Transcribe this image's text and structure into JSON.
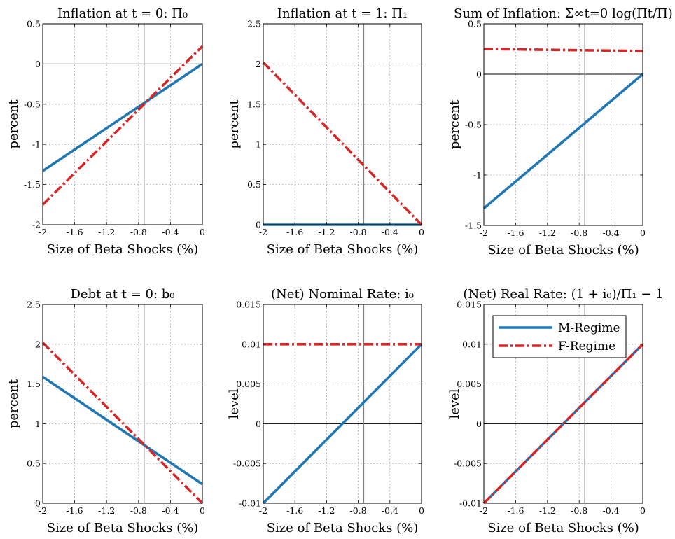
{
  "colors": {
    "m_regime": "#1f77b4",
    "f_regime": "#d62728",
    "zero_line": "#000000",
    "vline": "#808080",
    "grid": "#9a9a9a"
  },
  "legend": {
    "entries": [
      "M-Regime",
      "F-Regime"
    ],
    "placement": "top-right of panel 6"
  },
  "chart_data": [
    {
      "type": "line",
      "title": "Inflation at t = 0: Π₀",
      "xlabel": "Size of Beta Shocks (%)",
      "ylabel": "percent",
      "xlim": [
        -2,
        0
      ],
      "ylim": [
        -2,
        0.5
      ],
      "xticks": [
        "-2",
        "-1.6",
        "-1.2",
        "-0.8",
        "-0.4",
        "0"
      ],
      "yticks": [
        "-2",
        "-1.5",
        "-1",
        "-0.5",
        "0",
        "0.5"
      ],
      "vline_x": -0.73,
      "grid": true,
      "series": [
        {
          "name": "M-Regime",
          "style": "solid",
          "x": [
            -2,
            0
          ],
          "y": [
            -1.33,
            0
          ]
        },
        {
          "name": "F-Regime",
          "style": "dashdot",
          "x": [
            -2,
            0
          ],
          "y": [
            -1.75,
            0.22
          ]
        }
      ]
    },
    {
      "type": "line",
      "title": "Inflation at t = 1: Π₁",
      "xlabel": "Size of Beta Shocks (%)",
      "ylabel": "percent",
      "xlim": [
        -2,
        0
      ],
      "ylim": [
        0,
        2.5
      ],
      "xticks": [
        "-2",
        "-1.6",
        "-1.2",
        "-0.8",
        "-0.4",
        "0"
      ],
      "yticks": [
        "0",
        "0.5",
        "1",
        "1.5",
        "2",
        "2.5"
      ],
      "vline_x": -0.73,
      "grid": true,
      "series": [
        {
          "name": "M-Regime",
          "style": "solid",
          "x": [
            -2,
            0
          ],
          "y": [
            0,
            0
          ]
        },
        {
          "name": "F-Regime",
          "style": "dashdot",
          "x": [
            -2,
            0
          ],
          "y": [
            2.02,
            0
          ]
        }
      ]
    },
    {
      "type": "line",
      "title": "Sum of Inflation: Σ∞t=0 log(Πt/Π̄)",
      "xlabel": "Size of Beta Shocks (%)",
      "ylabel": "percent",
      "xlim": [
        -2,
        0
      ],
      "ylim": [
        -1.5,
        0.5
      ],
      "xticks": [
        "-2",
        "-1.6",
        "-1.2",
        "-0.8",
        "-0.4",
        "0"
      ],
      "yticks": [
        "-1.5",
        "-1",
        "-0.5",
        "0",
        "0.5"
      ],
      "vline_x": -0.73,
      "grid": true,
      "series": [
        {
          "name": "M-Regime",
          "style": "solid",
          "x": [
            -2,
            0
          ],
          "y": [
            -1.33,
            0
          ]
        },
        {
          "name": "F-Regime",
          "style": "dashdot",
          "x": [
            -2,
            0
          ],
          "y": [
            0.25,
            0.23
          ]
        }
      ]
    },
    {
      "type": "line",
      "title": "Debt at t = 0: b₀",
      "xlabel": "Size of Beta Shocks (%)",
      "ylabel": "percent",
      "xlim": [
        -2,
        0
      ],
      "ylim": [
        0,
        2.5
      ],
      "xticks": [
        "-2",
        "-1.6",
        "-1.2",
        "-0.8",
        "-0.4",
        "0"
      ],
      "yticks": [
        "0",
        "0.5",
        "1",
        "1.5",
        "2",
        "2.5"
      ],
      "vline_x": -0.73,
      "grid": true,
      "series": [
        {
          "name": "M-Regime",
          "style": "solid",
          "x": [
            -2,
            0
          ],
          "y": [
            1.59,
            0.24
          ]
        },
        {
          "name": "F-Regime",
          "style": "dashdot",
          "x": [
            -2,
            0
          ],
          "y": [
            2.02,
            0
          ]
        }
      ]
    },
    {
      "type": "line",
      "title": "(Net) Nominal Rate: i₀",
      "xlabel": "Size of Beta Shocks (%)",
      "ylabel": "level",
      "xlim": [
        -2,
        0
      ],
      "ylim": [
        -0.01,
        0.015
      ],
      "xticks": [
        "-2",
        "-1.6",
        "-1.2",
        "-0.8",
        "-0.4",
        "0"
      ],
      "yticks": [
        "-0.01",
        "-0.005",
        "0",
        "0.005",
        "0.01",
        "0.015"
      ],
      "vline_x": -0.73,
      "grid": true,
      "series": [
        {
          "name": "M-Regime",
          "style": "solid",
          "x": [
            -2,
            0
          ],
          "y": [
            -0.01,
            0.01
          ]
        },
        {
          "name": "F-Regime",
          "style": "dashdot",
          "x": [
            -2,
            0
          ],
          "y": [
            0.01,
            0.01
          ]
        }
      ]
    },
    {
      "type": "line",
      "title": "(Net) Real Rate: (1 + i₀)/Π₁ − 1",
      "xlabel": "Size of Beta Shocks (%)",
      "ylabel": "level",
      "xlim": [
        -2,
        0
      ],
      "ylim": [
        -0.01,
        0.015
      ],
      "xticks": [
        "-2",
        "-1.6",
        "-1.2",
        "-0.8",
        "-0.4",
        "0"
      ],
      "yticks": [
        "-0.01",
        "-0.005",
        "0",
        "0.005",
        "0.01",
        "0.015"
      ],
      "vline_x": -0.73,
      "grid": true,
      "legend": true,
      "series": [
        {
          "name": "M-Regime",
          "style": "solid",
          "x": [
            -2,
            0
          ],
          "y": [
            -0.01,
            0.01
          ]
        },
        {
          "name": "F-Regime",
          "style": "dashdot",
          "x": [
            -2,
            0
          ],
          "y": [
            -0.01,
            0.01
          ]
        }
      ]
    }
  ]
}
